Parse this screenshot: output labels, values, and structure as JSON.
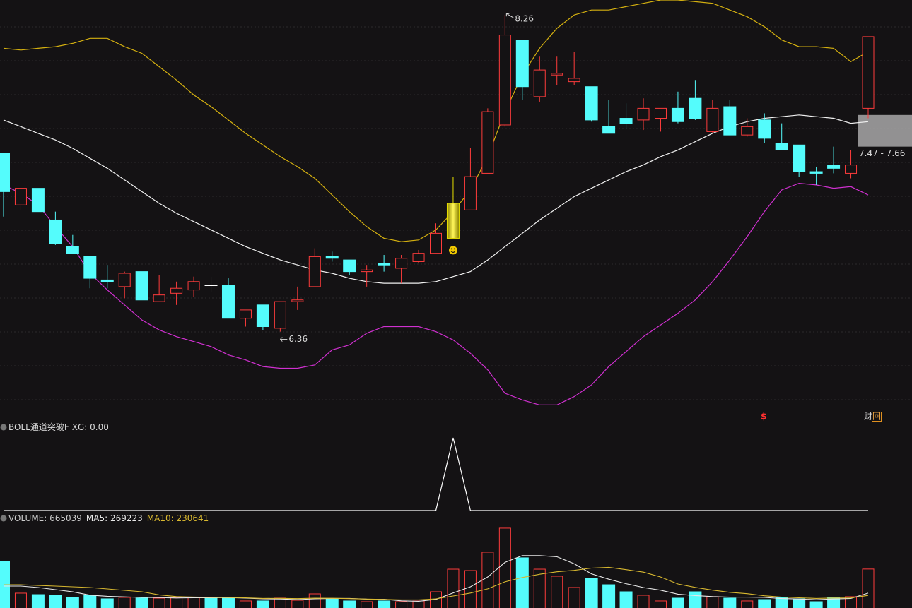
{
  "chart_data": [
    {
      "type": "candlestick",
      "open": [
        7.43,
        7.12,
        7.22,
        7.03,
        6.87,
        6.81,
        6.67,
        6.63,
        6.72,
        6.54,
        6.59,
        6.61,
        6.64,
        6.64,
        6.44,
        6.52,
        6.38,
        6.54,
        6.63,
        6.81,
        6.79,
        6.72,
        6.77,
        6.74,
        6.78,
        6.83,
        6.92,
        7.09,
        7.31,
        7.6,
        8.11,
        7.77,
        7.9,
        7.86,
        7.83,
        7.59,
        7.64,
        7.63,
        7.64,
        7.7,
        7.76,
        7.56,
        7.71,
        7.54,
        7.63,
        7.49,
        7.48,
        7.32,
        7.36,
        7.31,
        7.7
      ],
      "high": [
        7.43,
        7.22,
        7.22,
        7.08,
        6.94,
        6.81,
        6.76,
        6.72,
        6.72,
        6.7,
        6.66,
        6.69,
        6.69,
        6.68,
        6.49,
        6.52,
        6.54,
        6.63,
        6.86,
        6.84,
        6.79,
        6.76,
        6.82,
        6.82,
        6.85,
        7.01,
        7.29,
        7.46,
        7.7,
        8.26,
        8.11,
        8.01,
        8.01,
        8.04,
        7.83,
        7.75,
        7.73,
        7.76,
        7.7,
        7.8,
        7.87,
        7.75,
        7.75,
        7.64,
        7.67,
        7.61,
        7.48,
        7.35,
        7.47,
        7.45,
        8.13
      ],
      "low": [
        7.05,
        7.09,
        7.08,
        6.88,
        6.83,
        6.62,
        6.62,
        6.56,
        6.55,
        6.54,
        6.52,
        6.57,
        6.6,
        6.44,
        6.39,
        6.37,
        6.36,
        6.49,
        6.63,
        6.78,
        6.7,
        6.63,
        6.72,
        6.65,
        6.77,
        6.83,
        6.92,
        7.09,
        7.31,
        7.59,
        7.75,
        7.74,
        7.84,
        7.84,
        7.62,
        7.55,
        7.58,
        7.57,
        7.56,
        7.61,
        7.63,
        7.55,
        7.54,
        7.53,
        7.49,
        7.45,
        7.29,
        7.24,
        7.31,
        7.28,
        7.64
      ],
      "close": [
        7.2,
        7.22,
        7.08,
        6.89,
        6.83,
        6.68,
        6.66,
        6.71,
        6.55,
        6.58,
        6.62,
        6.66,
        6.64,
        6.44,
        6.49,
        6.39,
        6.54,
        6.55,
        6.81,
        6.8,
        6.72,
        6.73,
        6.76,
        6.8,
        6.83,
        6.95,
        7.13,
        7.29,
        7.68,
        8.14,
        7.83,
        7.93,
        7.91,
        7.88,
        7.63,
        7.55,
        7.61,
        7.7,
        7.7,
        7.62,
        7.64,
        7.7,
        7.54,
        7.59,
        7.52,
        7.45,
        7.32,
        7.31,
        7.34,
        7.36,
        8.13
      ],
      "up_color": "#ff3c3c",
      "down_color": "#54fcfc",
      "flat_color": "#ffffff",
      "signal_color": "#e8e000",
      "series": [
        {
          "color": "#d4b010",
          "values": [
            8.06,
            8.05,
            8.06,
            8.07,
            8.09,
            8.12,
            8.12,
            8.07,
            8.03,
            7.95,
            7.87,
            7.78,
            7.71,
            7.63,
            7.55,
            7.48,
            7.41,
            7.35,
            7.28,
            7.18,
            7.08,
            6.99,
            6.92,
            6.9,
            6.91,
            6.97,
            7.08,
            7.21,
            7.41,
            7.68,
            7.9,
            8.06,
            8.18,
            8.26,
            8.29,
            8.29,
            8.31,
            8.33,
            8.35,
            8.35,
            8.34,
            8.33,
            8.29,
            8.25,
            8.19,
            8.11,
            8.07,
            8.07,
            8.06,
            7.98,
            8.04
          ]
        },
        {
          "color": "#f0f0f0",
          "values": [
            7.63,
            7.59,
            7.55,
            7.51,
            7.46,
            7.4,
            7.34,
            7.27,
            7.2,
            7.13,
            7.07,
            7.02,
            6.97,
            6.92,
            6.87,
            6.83,
            6.79,
            6.76,
            6.73,
            6.71,
            6.68,
            6.66,
            6.65,
            6.65,
            6.65,
            6.66,
            6.69,
            6.72,
            6.79,
            6.87,
            6.95,
            7.03,
            7.1,
            7.17,
            7.22,
            7.27,
            7.32,
            7.36,
            7.41,
            7.45,
            7.5,
            7.55,
            7.59,
            7.62,
            7.64,
            7.65,
            7.66,
            7.65,
            7.64,
            7.61,
            7.62
          ]
        },
        {
          "color": "#d030d0",
          "values": [
            7.24,
            7.19,
            7.12,
            6.99,
            6.87,
            6.71,
            6.61,
            6.52,
            6.43,
            6.37,
            6.33,
            6.3,
            6.27,
            6.22,
            6.19,
            6.15,
            6.14,
            6.14,
            6.16,
            6.25,
            6.28,
            6.35,
            6.39,
            6.39,
            6.39,
            6.36,
            6.31,
            6.23,
            6.13,
            5.99,
            5.95,
            5.92,
            5.92,
            5.97,
            6.04,
            6.15,
            6.24,
            6.33,
            6.4,
            6.47,
            6.55,
            6.66,
            6.79,
            6.93,
            7.08,
            7.21,
            7.25,
            7.24,
            7.22,
            7.23,
            7.18
          ]
        }
      ],
      "ylim": [
        5.82,
        8.35
      ],
      "range_box": {
        "values": [
          7.47,
          7.66
        ],
        "label": "7.47 - 7.66"
      },
      "markers": [
        "$",
        "财",
        "回"
      ]
    },
    {
      "type": "line",
      "title": "BOLL通道突破F",
      "series": [
        {
          "name": "XG: 0.00",
          "color": "#ffffff",
          "values": [
            0,
            0,
            0,
            0,
            0,
            0,
            0,
            0,
            0,
            0,
            0,
            0,
            0,
            0,
            0,
            0,
            0,
            0,
            0,
            0,
            0,
            0,
            0,
            0,
            0,
            0,
            1,
            0,
            0,
            0,
            0,
            0,
            0,
            0,
            0,
            0,
            0,
            0,
            0,
            0,
            0,
            0,
            0,
            0,
            0,
            0,
            0,
            0,
            0,
            0,
            0
          ]
        }
      ],
      "ylim": [
        0,
        1
      ]
    },
    {
      "type": "bar",
      "series": [
        {
          "name": "VOLUME: 665039",
          "color": "#cccccc",
          "values": [
            791000,
            268000,
            244000,
            233000,
            198000,
            233000,
            175000,
            198000,
            186000,
            186000,
            198000,
            198000,
            198000,
            198000,
            140000,
            140000,
            186000,
            151000,
            256000,
            175000,
            140000,
            128000,
            140000,
            128000,
            140000,
            291000,
            663000,
            640000,
            943000,
            1339000,
            850000,
            663000,
            547000,
            361000,
            512000,
            407000,
            291000,
            233000,
            140000,
            186000,
            291000,
            210000,
            186000,
            140000,
            163000,
            198000,
            175000,
            128000,
            198000,
            210000,
            665039
          ]
        },
        {
          "name": "MA5: 269223",
          "color": "#e8e8e8",
          "values": [
            384000,
            384000,
            361000,
            326000,
            290000,
            235000,
            217000,
            207000,
            198000,
            196000,
            189000,
            193000,
            193000,
            196000,
            186000,
            175000,
            172000,
            163000,
            175000,
            182000,
            182000,
            170000,
            168000,
            142000,
            135000,
            165000,
            272000,
            372000,
            535000,
            775000,
            887000,
            887000,
            868000,
            752000,
            587000,
            498000,
            424000,
            361000,
            317000,
            251000,
            228000,
            212000,
            203000,
            203000,
            198000,
            179000,
            172000,
            161000,
            172000,
            182000,
            269223
          ]
        },
        {
          "name": "MA10: 230641",
          "color": "#d8b830",
          "values": [
            407000,
            407000,
            395000,
            384000,
            372000,
            361000,
            337000,
            314000,
            291000,
            240000,
            212000,
            205000,
            200000,
            197000,
            191000,
            182000,
            183000,
            178000,
            185000,
            184000,
            178000,
            171000,
            165000,
            158000,
            158000,
            174000,
            221000,
            270000,
            339000,
            455000,
            526000,
            580000,
            620000,
            644000,
            681000,
            693000,
            655000,
            615000,
            534000,
            419000,
            363000,
            318000,
            282000,
            260000,
            225000,
            204000,
            192000,
            182000,
            188000,
            190000,
            230641
          ]
        }
      ],
      "ylim": [
        0,
        1443000
      ]
    }
  ]
}
